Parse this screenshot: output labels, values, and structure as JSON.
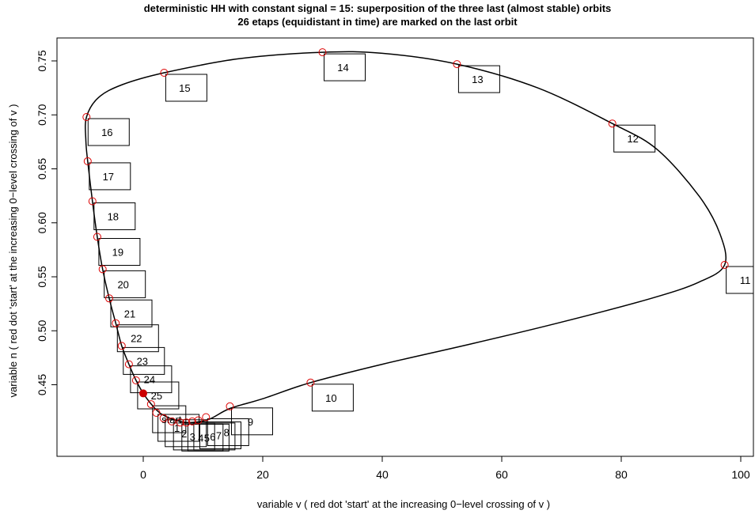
{
  "chart_data": {
    "type": "line",
    "title": "deterministic HH with constant signal = 15: superposition of the three last (almost stable) orbits",
    "subtitle": "26 etaps (equidistant in time) are marked on the last orbit",
    "xlabel": "variable v ( red dot 'start' at the increasing 0−level crossing of v )",
    "ylabel": "variable n ( red dot 'start' at the increasing 0−level crossing of v )",
    "xlim": [
      -12,
      101
    ],
    "ylim": [
      0.402,
      0.765
    ],
    "x_ticks": [
      0,
      20,
      40,
      60,
      80,
      100
    ],
    "y_ticks": [
      0.45,
      0.5,
      0.55,
      0.6,
      0.65,
      0.7,
      0.75
    ],
    "y_tick_labels": [
      "0.45",
      "0.50",
      "0.55",
      "0.60",
      "0.65",
      "0.70",
      "0.75"
    ],
    "grid": false,
    "orbit_color": "#000000",
    "marker_color": "#dd0000",
    "start_dot_color": "#cc0000",
    "orbit": [
      {
        "x": 0,
        "y": 0.442
      },
      {
        "x": 1.5,
        "y": 0.431
      },
      {
        "x": 3,
        "y": 0.423
      },
      {
        "x": 5.5,
        "y": 0.417
      },
      {
        "x": 8,
        "y": 0.415
      },
      {
        "x": 11,
        "y": 0.418
      },
      {
        "x": 14.5,
        "y": 0.428
      },
      {
        "x": 20,
        "y": 0.437
      },
      {
        "x": 28,
        "y": 0.452
      },
      {
        "x": 40,
        "y": 0.469
      },
      {
        "x": 55,
        "y": 0.488
      },
      {
        "x": 70,
        "y": 0.508
      },
      {
        "x": 85,
        "y": 0.53
      },
      {
        "x": 93,
        "y": 0.545
      },
      {
        "x": 97.3,
        "y": 0.561
      },
      {
        "x": 96.5,
        "y": 0.59
      },
      {
        "x": 93,
        "y": 0.625
      },
      {
        "x": 86,
        "y": 0.668
      },
      {
        "x": 78.5,
        "y": 0.692
      },
      {
        "x": 66,
        "y": 0.725
      },
      {
        "x": 52.5,
        "y": 0.747
      },
      {
        "x": 40,
        "y": 0.757
      },
      {
        "x": 30,
        "y": 0.758
      },
      {
        "x": 16,
        "y": 0.752
      },
      {
        "x": 3.5,
        "y": 0.739
      },
      {
        "x": -3.5,
        "y": 0.728
      },
      {
        "x": -7.5,
        "y": 0.716
      },
      {
        "x": -9.5,
        "y": 0.698
      },
      {
        "x": -9.6,
        "y": 0.676
      },
      {
        "x": -9.3,
        "y": 0.657
      },
      {
        "x": -8.5,
        "y": 0.62
      },
      {
        "x": -7.7,
        "y": 0.587
      },
      {
        "x": -6.8,
        "y": 0.557
      },
      {
        "x": -5.7,
        "y": 0.53
      },
      {
        "x": -4.6,
        "y": 0.507
      },
      {
        "x": -3.6,
        "y": 0.486
      },
      {
        "x": -2.4,
        "y": 0.469
      },
      {
        "x": -1.2,
        "y": 0.454
      },
      {
        "x": 0,
        "y": 0.442
      }
    ],
    "markers": [
      {
        "label": "start",
        "x": 1.3,
        "y": 0.432
      },
      {
        "label": "1",
        "x": 2.2,
        "y": 0.424
      },
      {
        "label": "2",
        "x": 3.4,
        "y": 0.419
      },
      {
        "label": "3",
        "x": 4.8,
        "y": 0.416
      },
      {
        "label": "4",
        "x": 6.2,
        "y": 0.415
      },
      {
        "label": "5",
        "x": 7.2,
        "y": 0.415
      },
      {
        "label": "6",
        "x": 8.2,
        "y": 0.416
      },
      {
        "label": "7",
        "x": 9.2,
        "y": 0.417
      },
      {
        "label": "8",
        "x": 10.5,
        "y": 0.42
      },
      {
        "label": "9",
        "x": 14.5,
        "y": 0.43
      },
      {
        "label": "10",
        "x": 28,
        "y": 0.452
      },
      {
        "label": "11",
        "x": 97.3,
        "y": 0.561
      },
      {
        "label": "12",
        "x": 78.5,
        "y": 0.692
      },
      {
        "label": "13",
        "x": 52.5,
        "y": 0.747
      },
      {
        "label": "14",
        "x": 30,
        "y": 0.758
      },
      {
        "label": "15",
        "x": 3.5,
        "y": 0.739
      },
      {
        "label": "16",
        "x": -9.5,
        "y": 0.698
      },
      {
        "label": "17",
        "x": -9.3,
        "y": 0.657
      },
      {
        "label": "18",
        "x": -8.5,
        "y": 0.62
      },
      {
        "label": "19",
        "x": -7.7,
        "y": 0.587
      },
      {
        "label": "20",
        "x": -6.8,
        "y": 0.557
      },
      {
        "label": "21",
        "x": -5.7,
        "y": 0.53
      },
      {
        "label": "22",
        "x": -4.6,
        "y": 0.507
      },
      {
        "label": "23",
        "x": -3.6,
        "y": 0.486
      },
      {
        "label": "24",
        "x": -2.4,
        "y": 0.469
      },
      {
        "label": "25",
        "x": -1.2,
        "y": 0.454
      }
    ],
    "start_point": {
      "x": 0,
      "y": 0.442
    }
  }
}
